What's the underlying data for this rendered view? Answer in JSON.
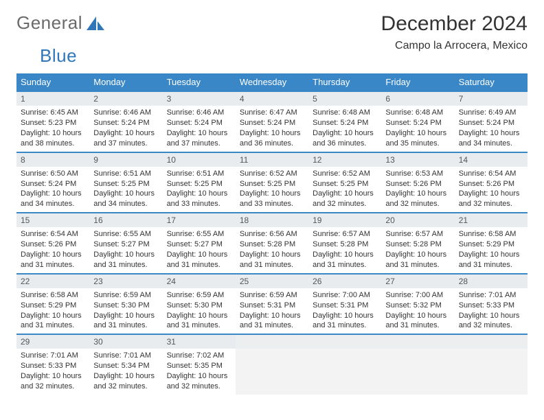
{
  "brand": {
    "part1": "General",
    "part2": "Blue"
  },
  "title": "December 2024",
  "location": "Campo la Arrocera, Mexico",
  "colors": {
    "header_bg": "#3a87c8",
    "header_text": "#ffffff",
    "daynum_bg": "#e9ecef",
    "border": "#3a87c8",
    "brand_blue": "#2f77b8",
    "brand_gray": "#6a6a6a"
  },
  "weekdays": [
    "Sunday",
    "Monday",
    "Tuesday",
    "Wednesday",
    "Thursday",
    "Friday",
    "Saturday"
  ],
  "weeks": [
    [
      {
        "n": "1",
        "sr": "6:45 AM",
        "ss": "5:23 PM",
        "dl": "10 hours and 38 minutes."
      },
      {
        "n": "2",
        "sr": "6:46 AM",
        "ss": "5:24 PM",
        "dl": "10 hours and 37 minutes."
      },
      {
        "n": "3",
        "sr": "6:46 AM",
        "ss": "5:24 PM",
        "dl": "10 hours and 37 minutes."
      },
      {
        "n": "4",
        "sr": "6:47 AM",
        "ss": "5:24 PM",
        "dl": "10 hours and 36 minutes."
      },
      {
        "n": "5",
        "sr": "6:48 AM",
        "ss": "5:24 PM",
        "dl": "10 hours and 36 minutes."
      },
      {
        "n": "6",
        "sr": "6:48 AM",
        "ss": "5:24 PM",
        "dl": "10 hours and 35 minutes."
      },
      {
        "n": "7",
        "sr": "6:49 AM",
        "ss": "5:24 PM",
        "dl": "10 hours and 34 minutes."
      }
    ],
    [
      {
        "n": "8",
        "sr": "6:50 AM",
        "ss": "5:24 PM",
        "dl": "10 hours and 34 minutes."
      },
      {
        "n": "9",
        "sr": "6:51 AM",
        "ss": "5:25 PM",
        "dl": "10 hours and 34 minutes."
      },
      {
        "n": "10",
        "sr": "6:51 AM",
        "ss": "5:25 PM",
        "dl": "10 hours and 33 minutes."
      },
      {
        "n": "11",
        "sr": "6:52 AM",
        "ss": "5:25 PM",
        "dl": "10 hours and 33 minutes."
      },
      {
        "n": "12",
        "sr": "6:52 AM",
        "ss": "5:25 PM",
        "dl": "10 hours and 32 minutes."
      },
      {
        "n": "13",
        "sr": "6:53 AM",
        "ss": "5:26 PM",
        "dl": "10 hours and 32 minutes."
      },
      {
        "n": "14",
        "sr": "6:54 AM",
        "ss": "5:26 PM",
        "dl": "10 hours and 32 minutes."
      }
    ],
    [
      {
        "n": "15",
        "sr": "6:54 AM",
        "ss": "5:26 PM",
        "dl": "10 hours and 31 minutes."
      },
      {
        "n": "16",
        "sr": "6:55 AM",
        "ss": "5:27 PM",
        "dl": "10 hours and 31 minutes."
      },
      {
        "n": "17",
        "sr": "6:55 AM",
        "ss": "5:27 PM",
        "dl": "10 hours and 31 minutes."
      },
      {
        "n": "18",
        "sr": "6:56 AM",
        "ss": "5:28 PM",
        "dl": "10 hours and 31 minutes."
      },
      {
        "n": "19",
        "sr": "6:57 AM",
        "ss": "5:28 PM",
        "dl": "10 hours and 31 minutes."
      },
      {
        "n": "20",
        "sr": "6:57 AM",
        "ss": "5:28 PM",
        "dl": "10 hours and 31 minutes."
      },
      {
        "n": "21",
        "sr": "6:58 AM",
        "ss": "5:29 PM",
        "dl": "10 hours and 31 minutes."
      }
    ],
    [
      {
        "n": "22",
        "sr": "6:58 AM",
        "ss": "5:29 PM",
        "dl": "10 hours and 31 minutes."
      },
      {
        "n": "23",
        "sr": "6:59 AM",
        "ss": "5:30 PM",
        "dl": "10 hours and 31 minutes."
      },
      {
        "n": "24",
        "sr": "6:59 AM",
        "ss": "5:30 PM",
        "dl": "10 hours and 31 minutes."
      },
      {
        "n": "25",
        "sr": "6:59 AM",
        "ss": "5:31 PM",
        "dl": "10 hours and 31 minutes."
      },
      {
        "n": "26",
        "sr": "7:00 AM",
        "ss": "5:31 PM",
        "dl": "10 hours and 31 minutes."
      },
      {
        "n": "27",
        "sr": "7:00 AM",
        "ss": "5:32 PM",
        "dl": "10 hours and 31 minutes."
      },
      {
        "n": "28",
        "sr": "7:01 AM",
        "ss": "5:33 PM",
        "dl": "10 hours and 32 minutes."
      }
    ],
    [
      {
        "n": "29",
        "sr": "7:01 AM",
        "ss": "5:33 PM",
        "dl": "10 hours and 32 minutes."
      },
      {
        "n": "30",
        "sr": "7:01 AM",
        "ss": "5:34 PM",
        "dl": "10 hours and 32 minutes."
      },
      {
        "n": "31",
        "sr": "7:02 AM",
        "ss": "5:35 PM",
        "dl": "10 hours and 32 minutes."
      },
      null,
      null,
      null,
      null
    ]
  ],
  "labels": {
    "sunrise": "Sunrise:",
    "sunset": "Sunset:",
    "daylight": "Daylight:"
  }
}
